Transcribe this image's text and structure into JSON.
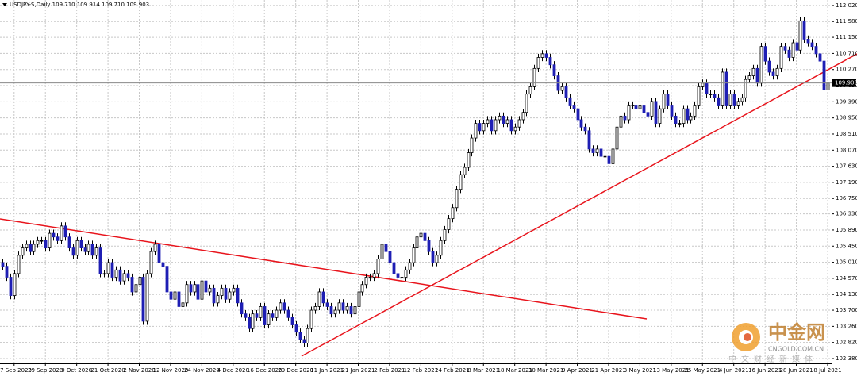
{
  "chart_data": {
    "type": "candlestick",
    "title": "USDJPY-S,Daily  109.710 109.914 109.710 109.903",
    "categories": [
      null,
      null,
      null,
      "17 Sep 2020",
      null,
      null,
      null,
      null,
      null,
      null,
      null,
      "29 Sep 2020",
      null,
      null,
      null,
      null,
      null,
      null,
      null,
      "9 Oct 2020",
      null,
      null,
      null,
      null,
      null,
      null,
      null,
      "21 Oct 2020",
      null,
      null,
      null,
      null,
      null,
      null,
      null,
      "2 Nov 2020",
      null,
      null,
      null,
      null,
      null,
      null,
      null,
      "12 Nov 2020",
      null,
      null,
      null,
      null,
      null,
      null,
      null,
      "24 Nov 2020",
      null,
      null,
      null,
      null,
      null,
      null,
      null,
      "4 Dec 2020",
      null,
      null,
      null,
      null,
      null,
      null,
      null,
      "16 Dec 2020",
      null,
      null,
      null,
      null,
      null,
      null,
      null,
      "29 Dec 2020",
      null,
      null,
      null,
      null,
      null,
      null,
      null,
      "11 Jan 2021",
      null,
      null,
      null,
      null,
      null,
      null,
      null,
      "21 Jan 2021",
      null,
      null,
      null,
      null,
      null,
      null,
      null,
      "2 Feb 2021",
      null,
      null,
      null,
      null,
      null,
      null,
      null,
      "12 Feb 2021",
      null,
      null,
      null,
      null,
      null,
      null,
      null,
      "24 Feb 2021",
      null,
      null,
      null,
      null,
      null,
      null,
      null,
      "8 Mar 2021",
      null,
      null,
      null,
      null,
      null,
      null,
      null,
      "18 Mar 2021",
      null,
      null,
      null,
      null,
      null,
      null,
      null,
      "30 Mar 2021",
      null,
      null,
      null,
      null,
      null,
      null,
      null,
      "9 Apr 2021",
      null,
      null,
      null,
      null,
      null,
      null,
      null,
      "21 Apr 2021",
      null,
      null,
      null,
      null,
      null,
      null,
      null,
      "3 May 2021",
      null,
      null,
      null,
      null,
      null,
      null,
      null,
      "13 May 2021",
      null,
      null,
      null,
      null,
      null,
      null,
      null,
      "25 May 2021",
      null,
      null,
      null,
      null,
      null,
      null,
      null,
      "4 Jun 2021",
      null,
      null,
      null,
      null,
      null,
      null,
      null,
      "16 Jun 2021",
      null,
      null,
      null,
      null,
      null,
      null,
      null,
      "28 Jun 2021",
      null,
      null,
      null,
      null,
      null,
      null,
      null,
      "8 Jul 2021"
    ],
    "open": [
      105.0,
      104.9,
      104.6,
      104.1,
      104.7,
      105.2,
      105.4,
      105.5,
      105.3,
      105.5,
      105.6,
      105.6,
      105.4,
      105.8,
      105.7,
      105.6,
      106.0,
      105.7,
      105.4,
      105.2,
      105.6,
      105.4,
      105.3,
      105.5,
      105.2,
      105.4,
      104.7,
      104.7,
      105.0,
      104.6,
      104.8,
      104.5,
      104.7,
      104.6,
      104.2,
      104.4,
      104.6,
      103.4,
      104.7,
      105.3,
      105.5,
      105.0,
      104.9,
      104.2,
      104.0,
      104.2,
      103.8,
      103.9,
      104.4,
      104.2,
      104.4,
      104.0,
      104.5,
      104.2,
      104.3,
      103.9,
      104.1,
      104.3,
      104.0,
      104.2,
      104.3,
      103.9,
      103.6,
      103.5,
      103.2,
      103.6,
      103.5,
      103.8,
      103.3,
      103.6,
      103.5,
      103.7,
      103.9,
      103.7,
      103.5,
      103.3,
      103.1,
      102.9,
      102.8,
      103.2,
      103.7,
      103.8,
      104.2,
      103.9,
      103.8,
      103.6,
      103.7,
      103.9,
      103.7,
      103.8,
      103.6,
      103.8,
      104.2,
      104.4,
      104.6,
      104.6,
      104.7,
      105.1,
      105.5,
      105.3,
      105.0,
      104.7,
      104.6,
      104.6,
      104.8,
      105.0,
      105.4,
      105.7,
      105.8,
      105.6,
      105.3,
      105.0,
      105.2,
      105.6,
      105.9,
      106.2,
      106.5,
      107.0,
      107.4,
      107.6,
      108.0,
      108.4,
      108.8,
      108.6,
      108.8,
      108.9,
      108.6,
      108.9,
      109.0,
      108.8,
      108.9,
      108.6,
      108.7,
      108.9,
      109.1,
      109.6,
      109.8,
      110.3,
      110.6,
      110.7,
      110.6,
      110.4,
      110.1,
      109.7,
      109.8,
      109.5,
      109.3,
      109.2,
      108.9,
      108.7,
      108.6,
      108.1,
      108.0,
      108.1,
      107.9,
      107.9,
      107.7,
      108.1,
      108.7,
      109.0,
      108.9,
      109.3,
      109.3,
      109.2,
      109.3,
      109.1,
      109.0,
      109.4,
      108.8,
      109.2,
      109.6,
      109.3,
      109.0,
      108.8,
      108.8,
      109.2,
      108.9,
      109.0,
      109.3,
      109.8,
      109.9,
      109.6,
      109.6,
      109.5,
      109.3,
      110.2,
      109.3,
      109.6,
      109.3,
      109.4,
      109.5,
      110.0,
      110.1,
      110.3,
      109.9,
      110.9,
      110.5,
      110.2,
      110.1,
      110.3,
      110.9,
      110.8,
      110.6,
      111.0,
      110.8,
      111.6,
      111.1,
      111.0,
      110.9,
      110.7,
      110.5,
      109.71
    ],
    "high": [
      105.1,
      105.0,
      104.7,
      104.8,
      105.3,
      105.5,
      105.6,
      105.6,
      105.6,
      105.7,
      105.7,
      105.7,
      105.9,
      105.9,
      105.8,
      106.1,
      106.1,
      105.8,
      105.5,
      105.7,
      105.7,
      105.5,
      105.6,
      105.6,
      105.5,
      105.5,
      104.8,
      105.1,
      105.1,
      104.9,
      104.9,
      104.8,
      104.8,
      104.7,
      104.5,
      104.7,
      104.7,
      104.8,
      105.4,
      105.6,
      105.6,
      105.1,
      105.0,
      104.3,
      104.3,
      104.3,
      104.0,
      104.5,
      104.5,
      104.5,
      104.5,
      104.6,
      104.6,
      104.4,
      104.4,
      104.2,
      104.4,
      104.4,
      104.3,
      104.4,
      104.4,
      104.0,
      103.7,
      103.6,
      103.7,
      103.7,
      103.9,
      103.9,
      103.7,
      103.7,
      103.8,
      104.0,
      104.0,
      103.8,
      103.6,
      103.4,
      103.2,
      103.0,
      103.3,
      103.8,
      103.9,
      104.3,
      104.3,
      104.0,
      103.9,
      103.8,
      104.0,
      104.0,
      103.9,
      103.9,
      103.9,
      104.3,
      104.5,
      104.7,
      104.7,
      104.8,
      105.2,
      105.6,
      105.6,
      105.4,
      105.1,
      104.8,
      104.7,
      104.9,
      105.1,
      105.5,
      105.8,
      105.9,
      105.9,
      105.7,
      105.4,
      105.3,
      105.7,
      106.0,
      106.3,
      106.6,
      107.1,
      107.5,
      107.7,
      108.1,
      108.5,
      108.9,
      108.9,
      108.9,
      109.0,
      109.0,
      109.0,
      109.1,
      109.1,
      109.0,
      109.0,
      108.8,
      109.0,
      109.2,
      109.7,
      109.9,
      110.4,
      110.7,
      110.8,
      110.8,
      110.7,
      110.5,
      110.2,
      109.9,
      109.9,
      109.6,
      109.4,
      109.3,
      109.0,
      108.8,
      108.7,
      108.2,
      108.2,
      108.2,
      108.0,
      108.0,
      108.2,
      108.8,
      109.1,
      109.1,
      109.4,
      109.4,
      109.4,
      109.4,
      109.4,
      109.2,
      109.5,
      109.5,
      109.3,
      109.7,
      109.7,
      109.4,
      109.1,
      108.9,
      109.3,
      109.3,
      109.1,
      109.4,
      109.9,
      110.0,
      110.0,
      109.7,
      109.7,
      109.6,
      110.3,
      110.3,
      109.7,
      109.7,
      109.5,
      109.6,
      110.1,
      110.2,
      110.4,
      110.4,
      111.0,
      111.0,
      110.6,
      110.3,
      110.4,
      111.0,
      111.0,
      110.9,
      111.1,
      111.1,
      111.7,
      111.7,
      111.2,
      111.1,
      111.0,
      110.8,
      110.6,
      109.914
    ],
    "low": [
      104.8,
      104.5,
      104.0,
      104.0,
      104.6,
      105.1,
      105.3,
      105.2,
      105.2,
      105.4,
      105.5,
      105.3,
      105.3,
      105.6,
      105.5,
      105.5,
      105.6,
      105.3,
      105.1,
      105.1,
      105.3,
      105.2,
      105.2,
      105.1,
      105.1,
      104.6,
      104.6,
      104.6,
      104.5,
      104.5,
      104.4,
      104.4,
      104.5,
      104.1,
      104.1,
      104.3,
      103.3,
      103.3,
      104.6,
      105.2,
      104.9,
      104.8,
      104.1,
      103.9,
      103.9,
      103.7,
      103.7,
      103.8,
      104.1,
      104.1,
      103.9,
      103.9,
      104.1,
      104.1,
      103.8,
      103.8,
      104.0,
      103.9,
      103.9,
      104.1,
      103.8,
      103.5,
      103.4,
      103.1,
      103.1,
      103.4,
      103.4,
      103.2,
      103.2,
      103.4,
      103.4,
      103.6,
      103.6,
      103.4,
      103.2,
      103.0,
      102.8,
      102.7,
      102.7,
      103.1,
      103.6,
      103.7,
      103.8,
      103.7,
      103.5,
      103.5,
      103.6,
      103.6,
      103.6,
      103.5,
      103.5,
      103.7,
      104.1,
      104.3,
      104.5,
      104.5,
      104.6,
      105.0,
      105.2,
      104.9,
      104.6,
      104.5,
      104.5,
      104.5,
      104.7,
      104.9,
      105.3,
      105.6,
      105.5,
      105.2,
      104.9,
      104.9,
      105.1,
      105.5,
      105.8,
      106.1,
      106.4,
      106.9,
      107.3,
      107.5,
      107.9,
      108.3,
      108.5,
      108.5,
      108.7,
      108.5,
      108.5,
      108.8,
      108.7,
      108.7,
      108.5,
      108.5,
      108.6,
      108.8,
      109.0,
      109.5,
      109.7,
      110.2,
      110.5,
      110.5,
      110.3,
      110.0,
      109.6,
      109.6,
      109.4,
      109.2,
      109.1,
      108.8,
      108.6,
      108.5,
      108.0,
      107.9,
      107.9,
      107.8,
      107.8,
      107.6,
      107.6,
      108.0,
      108.6,
      108.8,
      108.8,
      109.2,
      109.1,
      109.1,
      109.0,
      108.9,
      108.9,
      108.7,
      108.7,
      109.1,
      109.2,
      108.9,
      108.7,
      108.7,
      108.7,
      108.8,
      108.8,
      108.9,
      109.2,
      109.7,
      109.5,
      109.5,
      109.4,
      109.2,
      109.2,
      109.2,
      109.2,
      109.2,
      109.2,
      109.3,
      109.4,
      109.9,
      110.0,
      109.8,
      109.8,
      110.4,
      110.1,
      110.0,
      110.0,
      110.2,
      110.7,
      110.5,
      110.5,
      110.7,
      110.7,
      111.0,
      110.9,
      110.8,
      110.6,
      110.4,
      109.6,
      109.71
    ],
    "close": [
      104.9,
      104.6,
      104.1,
      104.7,
      105.2,
      105.4,
      105.5,
      105.3,
      105.5,
      105.6,
      105.6,
      105.4,
      105.8,
      105.7,
      105.6,
      106.0,
      105.7,
      105.4,
      105.2,
      105.6,
      105.4,
      105.3,
      105.5,
      105.2,
      105.4,
      104.7,
      104.7,
      105.0,
      104.6,
      104.8,
      104.5,
      104.7,
      104.6,
      104.2,
      104.4,
      104.6,
      103.4,
      104.7,
      105.3,
      105.5,
      105.0,
      104.9,
      104.2,
      104.0,
      104.2,
      103.8,
      103.9,
      104.4,
      104.2,
      104.4,
      104.0,
      104.5,
      104.2,
      104.3,
      103.9,
      104.1,
      104.3,
      104.0,
      104.2,
      104.3,
      103.9,
      103.6,
      103.5,
      103.2,
      103.6,
      103.5,
      103.8,
      103.3,
      103.6,
      103.5,
      103.7,
      103.9,
      103.7,
      103.5,
      103.3,
      103.1,
      102.9,
      102.8,
      103.2,
      103.7,
      103.8,
      104.2,
      103.9,
      103.8,
      103.6,
      103.7,
      103.9,
      103.7,
      103.8,
      103.6,
      103.8,
      104.2,
      104.4,
      104.6,
      104.6,
      104.7,
      105.1,
      105.5,
      105.3,
      105.0,
      104.7,
      104.6,
      104.6,
      104.8,
      105.0,
      105.4,
      105.7,
      105.8,
      105.6,
      105.3,
      105.0,
      105.2,
      105.6,
      105.9,
      106.2,
      106.5,
      107.0,
      107.4,
      107.6,
      108.0,
      108.4,
      108.8,
      108.6,
      108.8,
      108.9,
      108.6,
      108.9,
      109.0,
      108.8,
      108.9,
      108.6,
      108.7,
      108.9,
      109.1,
      109.6,
      109.8,
      110.3,
      110.6,
      110.7,
      110.6,
      110.4,
      110.1,
      109.7,
      109.8,
      109.5,
      109.3,
      109.2,
      108.9,
      108.7,
      108.6,
      108.1,
      108.0,
      108.1,
      107.9,
      107.9,
      107.7,
      108.1,
      108.7,
      109.0,
      108.9,
      109.3,
      109.3,
      109.2,
      109.3,
      109.1,
      109.0,
      109.4,
      108.8,
      109.2,
      109.6,
      109.3,
      109.0,
      108.8,
      108.8,
      109.2,
      108.9,
      109.0,
      109.3,
      109.8,
      109.9,
      109.6,
      109.6,
      109.5,
      109.3,
      110.2,
      109.3,
      109.6,
      109.3,
      109.4,
      109.5,
      110.0,
      110.1,
      110.3,
      109.9,
      110.9,
      110.5,
      110.2,
      110.1,
      110.3,
      110.9,
      110.8,
      110.6,
      111.0,
      110.8,
      111.6,
      111.1,
      111.0,
      110.9,
      110.7,
      110.5,
      109.71,
      109.903
    ],
    "last_price": 109.903,
    "ylim": [
      102.25,
      112.17
    ],
    "yticks": [
      {
        "value": 112.02,
        "label": "112.020"
      },
      {
        "value": 111.58,
        "label": "111.580"
      },
      {
        "value": 111.15,
        "label": "111.150"
      },
      {
        "value": 110.71,
        "label": "110.710"
      },
      {
        "value": 110.27,
        "label": "110.270"
      },
      {
        "value": 109.83,
        "label": "109.830"
      },
      {
        "value": 109.39,
        "label": "109.390"
      },
      {
        "value": 108.95,
        "label": "108.950"
      },
      {
        "value": 108.51,
        "label": "108.510"
      },
      {
        "value": 108.07,
        "label": "108.070"
      },
      {
        "value": 107.63,
        "label": "107.630"
      },
      {
        "value": 107.19,
        "label": "107.190"
      },
      {
        "value": 106.75,
        "label": "106.750"
      },
      {
        "value": 106.33,
        "label": "106.330"
      },
      {
        "value": 105.89,
        "label": "105.890"
      },
      {
        "value": 105.45,
        "label": "105.450"
      },
      {
        "value": 105.01,
        "label": "105.010"
      },
      {
        "value": 104.57,
        "label": "104.570"
      },
      {
        "value": 104.13,
        "label": "104.130"
      },
      {
        "value": 103.7,
        "label": "103.700"
      },
      {
        "value": 103.26,
        "label": "103.260"
      },
      {
        "value": 102.82,
        "label": "102.820"
      },
      {
        "value": 102.38,
        "label": "102.380"
      }
    ],
    "grid": true,
    "up_color": "#ffffff",
    "down_color": "#1f1fb4",
    "outline_color": "#000000"
  },
  "watermark": {
    "brand": "中金网",
    "site": "CNGOLD.COM.CN",
    "slogan": "中文财经新媒体"
  }
}
